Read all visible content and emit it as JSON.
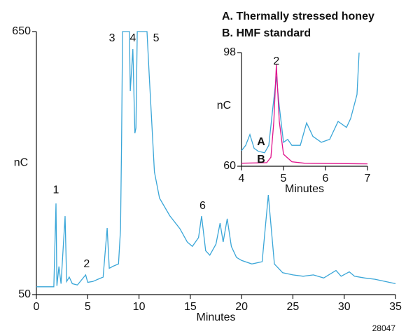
{
  "chart_data": [
    {
      "type": "line",
      "title_lines": [
        "A. Thermally stressed honey",
        "B. HMF standard"
      ],
      "xlabel": "Minutes",
      "ylabel": "nC",
      "footnote": "28047",
      "color": "#3aa6d8",
      "x": [
        0,
        1.7,
        1.91,
        2.0,
        2.2,
        2.4,
        2.8,
        2.95,
        3.2,
        3.5,
        4,
        4.8,
        5.0,
        5.5,
        6,
        6.5,
        6.9,
        7.1,
        7.5,
        8,
        8.2,
        8.3,
        8.4,
        9.07,
        9.15,
        9.4,
        9.6,
        9.7,
        9.83,
        10.78,
        11,
        11.5,
        12,
        13,
        14,
        14.7,
        15.2,
        15.8,
        16.1,
        16.5,
        16.9,
        17.5,
        17.9,
        18.2,
        18.6,
        19,
        19.5,
        20,
        21,
        22,
        22.6,
        23.2,
        24,
        25,
        26,
        27,
        28,
        29.2,
        29.7,
        30.5,
        31,
        32,
        33,
        34,
        35
      ],
      "values": [
        68,
        68,
        258,
        70,
        114,
        75,
        229,
        80,
        90,
        75,
        72,
        95,
        78,
        80,
        85,
        90,
        202,
        110,
        115,
        120,
        200,
        400,
        650,
        650,
        514,
        610,
        418,
        430,
        650,
        650,
        550,
        330,
        270,
        230,
        200,
        170,
        160,
        180,
        229,
        150,
        140,
        165,
        213,
        170,
        223,
        160,
        135,
        128,
        120,
        125,
        277,
        120,
        100,
        95,
        92,
        95,
        88,
        105,
        92,
        102,
        92,
        88,
        85,
        80,
        75
      ],
      "xlim": [
        0,
        35
      ],
      "ylim": [
        50,
        650
      ],
      "xticks": [
        0,
        5,
        10,
        15,
        20,
        25,
        30,
        35
      ],
      "yticks": [
        50,
        650
      ],
      "annotations": [
        {
          "text": "1",
          "x": 1.91,
          "y": 288
        },
        {
          "text": "2",
          "x": 4.9,
          "y": 119
        },
        {
          "text": "3",
          "x": 7.37,
          "y": 634
        },
        {
          "text": "4",
          "x": 9.4,
          "y": 634
        },
        {
          "text": "5",
          "x": 11.67,
          "y": 634
        },
        {
          "text": "6",
          "x": 16.2,
          "y": 252
        }
      ]
    },
    {
      "type": "line",
      "xlabel": "Minutes",
      "ylabel": "nC",
      "xlim": [
        4,
        7
      ],
      "ylim": [
        60,
        98
      ],
      "xticks": [
        4,
        5,
        6,
        7
      ],
      "yticks": [
        60,
        98
      ],
      "series": [
        {
          "name": "A",
          "color": "#3aa6d8",
          "x": [
            4.0,
            4.1,
            4.2,
            4.3,
            4.4,
            4.55,
            4.65,
            4.75,
            4.83,
            4.9,
            5.0,
            5.1,
            5.2,
            5.4,
            5.55,
            5.7,
            5.9,
            6.1,
            6.3,
            6.5,
            6.6,
            6.75,
            6.8
          ],
          "values": [
            65.2,
            67,
            70.6,
            66,
            65,
            64.5,
            67,
            80,
            90,
            80,
            68,
            69,
            67,
            67,
            74.5,
            70,
            68,
            69,
            75,
            73,
            76,
            84,
            98
          ]
        },
        {
          "name": "B",
          "color": "#e0148c",
          "x": [
            4.0,
            4.6,
            4.7,
            4.77,
            4.83,
            4.9,
            5.0,
            5.2,
            5.5,
            7.0
          ],
          "values": [
            61,
            61.2,
            63,
            75,
            94,
            75,
            64,
            61.5,
            61,
            60.8
          ]
        }
      ],
      "annotations": [
        {
          "text": "2",
          "x": 4.83,
          "y": 95
        }
      ]
    }
  ]
}
